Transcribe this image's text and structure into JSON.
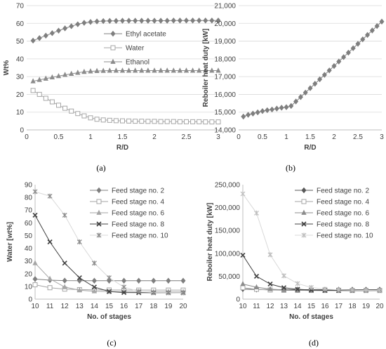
{
  "chart_data": [
    {
      "id": "a",
      "type": "line",
      "caption": "(a)",
      "xlabel": "R/D",
      "ylabel": "Wt%",
      "xlim": [
        0,
        3
      ],
      "ylim": [
        0,
        70
      ],
      "xticks": [
        0,
        0.5,
        1,
        1.5,
        2,
        2.5,
        3
      ],
      "yticks": [
        0,
        10,
        20,
        30,
        40,
        50,
        60,
        70
      ],
      "grid": "horizontal",
      "legend_position": "right",
      "series": [
        {
          "name": "Ethyl acetate",
          "color": "#7f7f7f",
          "marker": "diamond",
          "fill": "#7f7f7f",
          "x": [
            0.1,
            0.2,
            0.3,
            0.4,
            0.5,
            0.6,
            0.7,
            0.8,
            0.9,
            1.0,
            1.1,
            1.2,
            1.3,
            1.4,
            1.5,
            1.6,
            1.7,
            1.8,
            1.9,
            2.0,
            2.1,
            2.2,
            2.3,
            2.4,
            2.5,
            2.6,
            2.7,
            2.8,
            2.9,
            3.0
          ],
          "y": [
            50.3,
            51.7,
            53.1,
            54.5,
            55.9,
            57.2,
            58.4,
            59.5,
            60.3,
            60.8,
            61.1,
            61.3,
            61.4,
            61.4,
            61.5,
            61.5,
            61.5,
            61.5,
            61.5,
            61.5,
            61.5,
            61.5,
            61.6,
            61.6,
            61.6,
            61.6,
            61.6,
            61.6,
            61.6,
            61.6
          ]
        },
        {
          "name": "Water",
          "color": "#a6a6a6",
          "marker": "square",
          "fill": "#ffffff",
          "x": [
            0.1,
            0.2,
            0.3,
            0.4,
            0.5,
            0.6,
            0.7,
            0.8,
            0.9,
            1.0,
            1.1,
            1.2,
            1.3,
            1.4,
            1.5,
            1.6,
            1.7,
            1.8,
            1.9,
            2.0,
            2.1,
            2.2,
            2.3,
            2.4,
            2.5,
            2.6,
            2.7,
            2.8,
            2.9,
            3.0
          ],
          "y": [
            22.2,
            20.0,
            17.8,
            15.8,
            13.9,
            12.2,
            10.6,
            9.2,
            7.9,
            6.8,
            6.0,
            5.6,
            5.4,
            5.2,
            5.1,
            5.0,
            4.9,
            4.9,
            4.8,
            4.8,
            4.7,
            4.7,
            4.7,
            4.6,
            4.6,
            4.6,
            4.6,
            4.5,
            4.5,
            4.5
          ]
        },
        {
          "name": "Ethanol",
          "color": "#8c8c8c",
          "marker": "triangle",
          "fill": "#8c8c8c",
          "x": [
            0.1,
            0.2,
            0.3,
            0.4,
            0.5,
            0.6,
            0.7,
            0.8,
            0.9,
            1.0,
            1.1,
            1.2,
            1.3,
            1.4,
            1.5,
            1.6,
            1.7,
            1.8,
            1.9,
            2.0,
            2.1,
            2.2,
            2.3,
            2.4,
            2.5,
            2.6,
            2.7,
            2.8,
            2.9,
            3.0
          ],
          "y": [
            27.4,
            28.2,
            28.9,
            29.6,
            30.3,
            31.0,
            31.6,
            32.2,
            32.7,
            33.0,
            33.2,
            33.3,
            33.4,
            33.4,
            33.4,
            33.4,
            33.4,
            33.4,
            33.4,
            33.4,
            33.4,
            33.4,
            33.4,
            33.4,
            33.4,
            33.4,
            33.4,
            33.4,
            33.4,
            33.4
          ]
        }
      ]
    },
    {
      "id": "b",
      "type": "line",
      "caption": "(b)",
      "xlabel": "R/D",
      "ylabel": "Reboiler heat duty [kW]",
      "xlim": [
        0,
        3
      ],
      "ylim": [
        14000,
        21000
      ],
      "xticks": [
        0,
        0.5,
        1,
        1.5,
        2,
        2.5,
        3
      ],
      "yticks": [
        14000,
        15000,
        16000,
        17000,
        18000,
        19000,
        20000,
        21000
      ],
      "ytick_labels": [
        "14,000",
        "15,000",
        "16,000",
        "17,000",
        "18,000",
        "19,000",
        "20,000",
        "21,000"
      ],
      "grid": "horizontal",
      "series": [
        {
          "name": "",
          "color": "#7f7f7f",
          "marker": "diamond",
          "fill": "#7f7f7f",
          "x": [
            0.1,
            0.2,
            0.3,
            0.4,
            0.5,
            0.6,
            0.7,
            0.8,
            0.9,
            1.0,
            1.1,
            1.2,
            1.3,
            1.4,
            1.5,
            1.6,
            1.7,
            1.8,
            1.9,
            2.0,
            2.1,
            2.2,
            2.3,
            2.4,
            2.5,
            2.6,
            2.7,
            2.8,
            2.9,
            3.0
          ],
          "y": [
            14750,
            14850,
            14920,
            14990,
            15060,
            15110,
            15150,
            15200,
            15250,
            15280,
            15350,
            15600,
            15850,
            16100,
            16350,
            16600,
            16850,
            17100,
            17350,
            17600,
            17850,
            18100,
            18350,
            18600,
            18850,
            19100,
            19350,
            19600,
            19850,
            20100
          ]
        }
      ]
    },
    {
      "id": "c",
      "type": "line",
      "caption": "(c)",
      "xlabel": "No. of stages",
      "ylabel": "Water [wt%]",
      "xlim": [
        10,
        20
      ],
      "ylim": [
        0,
        90
      ],
      "xticks": [
        10,
        11,
        12,
        13,
        14,
        15,
        16,
        17,
        18,
        19,
        20
      ],
      "yticks": [
        0,
        10,
        20,
        30,
        40,
        50,
        60,
        70,
        80,
        90
      ],
      "grid": "none",
      "legend_position": "top-right",
      "series": [
        {
          "name": "Feed stage no. 2",
          "color": "#7f7f7f",
          "marker": "diamond",
          "fill": "#7f7f7f",
          "x": [
            10,
            11,
            12,
            13,
            14,
            15,
            16,
            17,
            18,
            19,
            20
          ],
          "y": [
            15.8,
            14.9,
            14.6,
            14.5,
            14.5,
            14.5,
            14.5,
            14.5,
            14.5,
            14.5,
            14.5
          ]
        },
        {
          "name": "Feed stage no. 4",
          "color": "#a6a6a6",
          "marker": "square",
          "fill": "#ffffff",
          "x": [
            10,
            11,
            12,
            13,
            14,
            15,
            16,
            17,
            18,
            19,
            20
          ],
          "y": [
            11.3,
            9.0,
            7.9,
            7.5,
            7.3,
            7.2,
            7.2,
            7.1,
            7.1,
            7.1,
            7.1
          ]
        },
        {
          "name": "Feed stage no. 6",
          "color": "#a6a6a6",
          "marker": "triangle",
          "fill": "#a6a6a6",
          "x": [
            10,
            11,
            12,
            13,
            14,
            15,
            16,
            17,
            18,
            19,
            20
          ],
          "y": [
            28.3,
            16.0,
            9.5,
            7.0,
            6.2,
            5.9,
            5.8,
            5.7,
            5.7,
            5.7,
            5.7
          ]
        },
        {
          "name": "Feed stage no. 8",
          "color": "#404040",
          "marker": "x",
          "fill": "#404040",
          "x": [
            10,
            11,
            12,
            13,
            14,
            15,
            16,
            17,
            18,
            19,
            20
          ],
          "y": [
            66.0,
            45.0,
            28.3,
            16.8,
            9.5,
            6.0,
            5.2,
            5.1,
            5.0,
            5.0,
            5.0
          ]
        },
        {
          "name": "Feed stage no. 10",
          "color": "#d9d9d9",
          "marker": "star",
          "fill": "#8c8c8c",
          "x": [
            10,
            11,
            12,
            13,
            14,
            15,
            16,
            17,
            18,
            19,
            20
          ],
          "y": [
            84.5,
            81.0,
            66.0,
            45.0,
            28.3,
            16.8,
            9.5,
            6.0,
            5.2,
            5.1,
            5.0
          ]
        }
      ]
    },
    {
      "id": "d",
      "type": "line",
      "caption": "(d)",
      "xlabel": "No. of stages",
      "ylabel": "Reboiler heat duty [kW]",
      "xlim": [
        10,
        20
      ],
      "ylim": [
        0,
        250000
      ],
      "xticks": [
        10,
        11,
        12,
        13,
        14,
        15,
        16,
        17,
        18,
        19,
        20
      ],
      "yticks": [
        0,
        50000,
        100000,
        150000,
        200000,
        250000
      ],
      "ytick_labels": [
        "0",
        "50,000",
        "100,000",
        "150,000",
        "200,000",
        "250,000"
      ],
      "grid": "none",
      "legend_position": "top-right",
      "series": [
        {
          "name": "Feed stage no. 2",
          "color": "#595959",
          "marker": "diamond",
          "fill": "#595959",
          "x": [
            10,
            11,
            12,
            13,
            14,
            15,
            16,
            17,
            18,
            19,
            20
          ],
          "y": [
            22000,
            21000,
            20800,
            20700,
            20700,
            20700,
            20700,
            20700,
            20700,
            20700,
            20700
          ]
        },
        {
          "name": "Feed stage no. 4",
          "color": "#a6a6a6",
          "marker": "square",
          "fill": "#ffffff",
          "x": [
            10,
            11,
            12,
            13,
            14,
            15,
            16,
            17,
            18,
            19,
            20
          ],
          "y": [
            25000,
            21500,
            20000,
            19400,
            19100,
            19000,
            18900,
            18900,
            18900,
            18900,
            18900
          ]
        },
        {
          "name": "Feed stage no. 6",
          "color": "#8c8c8c",
          "marker": "triangle",
          "fill": "#8c8c8c",
          "x": [
            10,
            11,
            12,
            13,
            14,
            15,
            16,
            17,
            18,
            19,
            20
          ],
          "y": [
            33000,
            26000,
            22000,
            20000,
            19300,
            19000,
            18900,
            18900,
            18900,
            18900,
            18900
          ]
        },
        {
          "name": "Feed stage no. 8",
          "color": "#404040",
          "marker": "x",
          "fill": "#404040",
          "x": [
            10,
            11,
            12,
            13,
            14,
            15,
            16,
            17,
            18,
            19,
            20
          ],
          "y": [
            96000,
            50000,
            33000,
            25000,
            21500,
            20000,
            19300,
            19000,
            18900,
            18900,
            18900
          ]
        },
        {
          "name": "Feed stage no. 10",
          "color": "#d9d9d9",
          "marker": "star",
          "fill": "#bfbfbf",
          "x": [
            10,
            11,
            12,
            13,
            14,
            15,
            16,
            17,
            18,
            19,
            20
          ],
          "y": [
            230000,
            188000,
            97000,
            51000,
            34000,
            25500,
            21800,
            20300,
            19500,
            19100,
            18900
          ]
        }
      ]
    }
  ]
}
